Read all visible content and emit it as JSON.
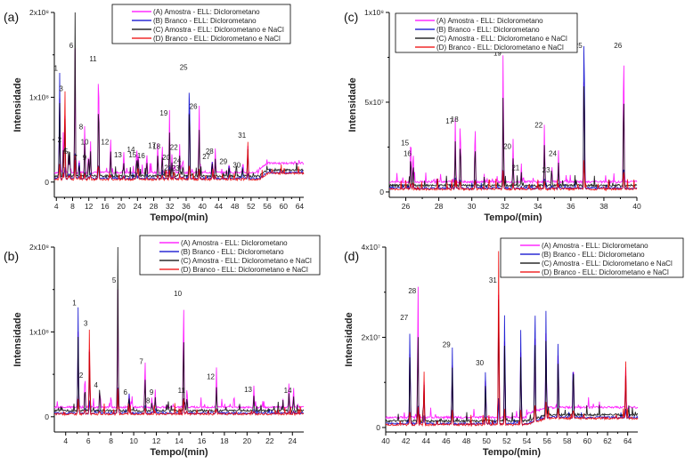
{
  "legend": [
    {
      "name": "(A) Amostra - ELL: Diclorometano",
      "color": "#ff00ff"
    },
    {
      "name": "(B) Branco - ELL: Diclorometano",
      "color": "#0000cc"
    },
    {
      "name": "(C) Amostra - ELL: Diclorometano e NaCl",
      "color": "#000000"
    },
    {
      "name": "(D) Branco - ELL: Diclorometano e NaCl",
      "color": "#ee0000"
    }
  ],
  "chart_data": [
    {
      "panel": "(a)",
      "type": "line",
      "xlabel": "Tempo/(min)",
      "ylabel": "Intensidade",
      "xlim": [
        3.5,
        65
      ],
      "ylim": [
        -18000000.0,
        200000000.0
      ],
      "xticks": [
        4,
        8,
        12,
        16,
        20,
        24,
        28,
        32,
        36,
        40,
        44,
        48,
        52,
        56,
        60,
        64
      ],
      "yticks": [
        {
          "v": 0,
          "l": "0"
        },
        {
          "v": 100000000.0,
          "l": "1x10⁸"
        },
        {
          "v": 200000000.0,
          "l": "2x10⁸"
        }
      ],
      "peaks": [
        {
          "x": 4.8,
          "y": 127000000.0,
          "label": "1",
          "s": 1
        },
        {
          "x": 5.7,
          "y": 43000000.0,
          "label": "2",
          "s": 0
        },
        {
          "x": 6.1,
          "y": 103000000.0,
          "label": "3",
          "s": 3
        },
        {
          "x": 7.0,
          "y": 30000000.0,
          "label": "4",
          "s": 2
        },
        {
          "x": 7.3,
          "y": 29000000.0,
          "label": "5",
          "s": 2
        },
        {
          "x": 8.6,
          "y": 200000000.0,
          "label": "6",
          "s": 2
        },
        {
          "x": 9.6,
          "y": 22000000.0,
          "label": "7",
          "s": 1
        },
        {
          "x": 11.0,
          "y": 58000000.0,
          "label": "8",
          "s": 0
        },
        {
          "x": 11.9,
          "y": 22000000.0,
          "label": "9",
          "s": 0
        },
        {
          "x": 12.4,
          "y": 40000000.0,
          "label": "10",
          "s": 0
        },
        {
          "x": 14.4,
          "y": 138000000.0,
          "label": "11",
          "s": 0
        },
        {
          "x": 17.4,
          "y": 40000000.0,
          "label": "12",
          "s": 0
        },
        {
          "x": 20.6,
          "y": 25000000.0,
          "label": "13",
          "s": 0
        },
        {
          "x": 23.8,
          "y": 31000000.0,
          "label": "14",
          "s": 0
        },
        {
          "x": 24.2,
          "y": 25000000.0,
          "label": "15",
          "s": 0
        },
        {
          "x": 26.3,
          "y": 24000000.0,
          "label": "16",
          "s": 0
        },
        {
          "x": 29.0,
          "y": 36000000.0,
          "label": "17",
          "s": 0
        },
        {
          "x": 30.1,
          "y": 35000000.0,
          "label": "18",
          "s": 0
        },
        {
          "x": 31.9,
          "y": 74000000.0,
          "label": "19",
          "s": 0
        },
        {
          "x": 32.5,
          "y": 22000000.0,
          "label": "20",
          "s": 0
        },
        {
          "x": 33.0,
          "y": 10000000.0,
          "label": "21",
          "s": 3
        },
        {
          "x": 34.4,
          "y": 34000000.0,
          "label": "22",
          "s": 0
        },
        {
          "x": 34.8,
          "y": 9000000.0,
          "label": "23",
          "s": 0
        },
        {
          "x": 35.2,
          "y": 18000000.0,
          "label": "24",
          "s": 0
        },
        {
          "x": 36.8,
          "y": 128000000.0,
          "label": "25",
          "s": 1
        },
        {
          "x": 39.2,
          "y": 82000000.0,
          "label": "26",
          "s": 0
        },
        {
          "x": 42.4,
          "y": 23000000.0,
          "label": "27",
          "s": 1
        },
        {
          "x": 43.2,
          "y": 29000000.0,
          "label": "28",
          "s": 0
        },
        {
          "x": 46.6,
          "y": 17000000.0,
          "label": "29",
          "s": 1
        },
        {
          "x": 49.9,
          "y": 13000000.0,
          "label": "30",
          "s": 1
        },
        {
          "x": 51.2,
          "y": 48000000.0,
          "label": "31",
          "s": 3
        }
      ]
    },
    {
      "panel": "(c)",
      "type": "line",
      "xlabel": "Tempo/(min)",
      "ylabel": "Intensidade",
      "xlim": [
        25,
        40
      ],
      "ylim": [
        -3000000.0,
        100000000.0
      ],
      "xticks": [
        26,
        28,
        30,
        32,
        34,
        36,
        38,
        40
      ],
      "yticks": [
        {
          "v": 0,
          "l": "0"
        },
        {
          "v": 50000000.0,
          "l": "5x10⁷"
        },
        {
          "v": 100000000.0,
          "l": "1x10⁸"
        }
      ],
      "peaks": [
        {
          "x": 26.3,
          "y": 24000000.0,
          "label": "15",
          "s": 0
        },
        {
          "x": 26.45,
          "y": 18000000.0,
          "label": "16",
          "s": 0
        },
        {
          "x": 29.0,
          "y": 36000000.0,
          "label": "17",
          "s": 0
        },
        {
          "x": 29.3,
          "y": 37000000.0,
          "label": "18",
          "s": 0
        },
        {
          "x": 30.2,
          "y": 35000000.0,
          "label": "",
          "s": 0
        },
        {
          "x": 31.9,
          "y": 74000000.0,
          "label": "19",
          "s": 0
        },
        {
          "x": 32.5,
          "y": 22000000.0,
          "label": "20",
          "s": 0
        },
        {
          "x": 33.0,
          "y": 10000000.0,
          "label": "21",
          "s": 0
        },
        {
          "x": 34.4,
          "y": 34000000.0,
          "label": "22",
          "s": 0
        },
        {
          "x": 34.85,
          "y": 9000000.0,
          "label": "23",
          "s": 0
        },
        {
          "x": 35.25,
          "y": 18000000.0,
          "label": "24",
          "s": 0
        },
        {
          "x": 36.8,
          "y": 100000000.0,
          "label": "25",
          "s": 1
        },
        {
          "x": 39.2,
          "y": 82000000.0,
          "label": "26",
          "s": 0
        }
      ]
    },
    {
      "panel": "(b)",
      "type": "line",
      "xlabel": "Tempo/(min)",
      "ylabel": "Intensidade",
      "xlim": [
        3,
        25
      ],
      "ylim": [
        -18000000.0,
        200000000.0
      ],
      "xticks": [
        4,
        6,
        8,
        10,
        12,
        14,
        16,
        18,
        20,
        22,
        24
      ],
      "yticks": [
        {
          "v": 0,
          "l": "0"
        },
        {
          "v": 100000000.0,
          "l": "1x10⁸"
        },
        {
          "v": 200000000.0,
          "l": "2x10⁸"
        }
      ],
      "peaks": [
        {
          "x": 5.1,
          "y": 127000000.0,
          "label": "1",
          "s": 1
        },
        {
          "x": 5.7,
          "y": 42000000.0,
          "label": "2",
          "s": 0
        },
        {
          "x": 6.1,
          "y": 103000000.0,
          "label": "3",
          "s": 3
        },
        {
          "x": 7.0,
          "y": 30000000.0,
          "label": "4",
          "s": 2
        },
        {
          "x": 8.6,
          "y": 200000000.0,
          "label": "5",
          "s": 2
        },
        {
          "x": 9.6,
          "y": 22000000.0,
          "label": "6",
          "s": 1
        },
        {
          "x": 11.0,
          "y": 58000000.0,
          "label": "7",
          "s": 0
        },
        {
          "x": 11.9,
          "y": 22000000.0,
          "label": "9",
          "s": 0
        },
        {
          "x": 11.6,
          "y": 12000000.0,
          "label": "8",
          "s": 0
        },
        {
          "x": 14.4,
          "y": 138000000.0,
          "label": "10",
          "s": 0
        },
        {
          "x": 14.7,
          "y": 24000000.0,
          "label": "11",
          "s": 0
        },
        {
          "x": 17.3,
          "y": 40000000.0,
          "label": "12",
          "s": 0
        },
        {
          "x": 20.6,
          "y": 25000000.0,
          "label": "13",
          "s": 0
        },
        {
          "x": 23.7,
          "y": 30000000.0,
          "label": "",
          "s": 0
        },
        {
          "x": 24.1,
          "y": 24000000.0,
          "label": "14",
          "s": 0
        }
      ]
    },
    {
      "panel": "(d)",
      "type": "line",
      "xlabel": "Tempo/(min)",
      "ylabel": "Intensidade",
      "xlim": [
        40,
        65
      ],
      "ylim": [
        -1000000.0,
        40000000.0
      ],
      "xticks": [
        40,
        42,
        44,
        46,
        48,
        50,
        52,
        54,
        56,
        58,
        60,
        62,
        64
      ],
      "yticks": [
        {
          "v": 0,
          "l": "0"
        },
        {
          "v": 20000000.0,
          "l": "2x10⁷"
        },
        {
          "v": 40000000.0,
          "l": "4x10⁷"
        }
      ],
      "peaks": [
        {
          "x": 42.4,
          "y": 23000000.0,
          "label": "27",
          "s": 1
        },
        {
          "x": 43.2,
          "y": 29000000.0,
          "label": "28",
          "s": 0
        },
        {
          "x": 43.8,
          "y": 12000000.0,
          "label": "",
          "s": 3
        },
        {
          "x": 46.6,
          "y": 17000000.0,
          "label": "29",
          "s": 1
        },
        {
          "x": 49.9,
          "y": 13000000.0,
          "label": "30",
          "s": 1
        },
        {
          "x": 51.2,
          "y": 40000000.0,
          "label": "31",
          "s": 3
        },
        {
          "x": 51.8,
          "y": 26000000.0,
          "label": "",
          "s": 1
        },
        {
          "x": 53.4,
          "y": 21000000.0,
          "label": "",
          "s": 1
        },
        {
          "x": 54.8,
          "y": 28000000.0,
          "label": "",
          "s": 1
        },
        {
          "x": 55.9,
          "y": 24000000.0,
          "label": "",
          "s": 1
        },
        {
          "x": 57.1,
          "y": 18000000.0,
          "label": "",
          "s": 1
        },
        {
          "x": 58.6,
          "y": 14000000.0,
          "label": "",
          "s": 1
        },
        {
          "x": 63.8,
          "y": 13000000.0,
          "label": "",
          "s": 3
        }
      ]
    }
  ]
}
